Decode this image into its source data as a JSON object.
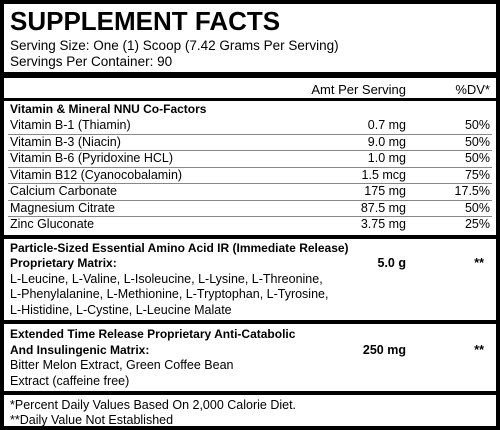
{
  "header": {
    "title": "SUPPLEMENT FACTS",
    "serving_size": "Serving Size: One (1) Scoop (7.42 Grams Per Serving)",
    "servings_per_container": "Servings Per Container: 90"
  },
  "table": {
    "columns": [
      "Amt Per Serving",
      "%DV*"
    ],
    "section_heading": "Vitamin & Mineral NNU Co-Factors",
    "rows": [
      [
        "Vitamin B-1 (Thiamin)",
        "0.7 mg",
        "50%"
      ],
      [
        "Vitamin B-3 (Niacin)",
        "9.0 mg",
        "50%"
      ],
      [
        "Vitamin B-6 (Pyridoxine HCL)",
        "1.0 mg",
        "50%"
      ],
      [
        "Vitamin B12 (Cyanocobalamin)",
        "1.5 mcg",
        "75%"
      ],
      [
        "Calcium Carbonate",
        "175 mg",
        "17.5%"
      ],
      [
        "Magnesium Citrate",
        "87.5 mg",
        "50%"
      ],
      [
        "Zinc Gluconate",
        "3.75 mg",
        "25%"
      ]
    ]
  },
  "blends": [
    {
      "title": [
        "Particle-Sized Essential Amino Acid IR (Immediate Release)",
        "Proprietary Matrix:"
      ],
      "amount": "5.0 g",
      "dv": "**",
      "ingredients": [
        "L-Leucine, L-Valine, L-Isoleucine, L-Lysine, L-Threonine,",
        "L-Phenylalanine, L-Methionine, L-Tryptophan, L-Tyrosine,",
        "L-Histidine, L-Cystine, L-Leucine Malate"
      ]
    },
    {
      "title": [
        "Extended Time Release Proprietary Anti-Catabolic",
        "And Insulingenic Matrix:"
      ],
      "amount": "250 mg",
      "dv": "**",
      "ingredients": [
        "Bitter Melon Extract, Green Coffee Bean",
        "Extract (caffeine free)"
      ]
    }
  ],
  "footnotes": [
    "*Percent Daily Values Based On 2,000 Calorie Diet.",
    "**Daily Value Not Established"
  ]
}
